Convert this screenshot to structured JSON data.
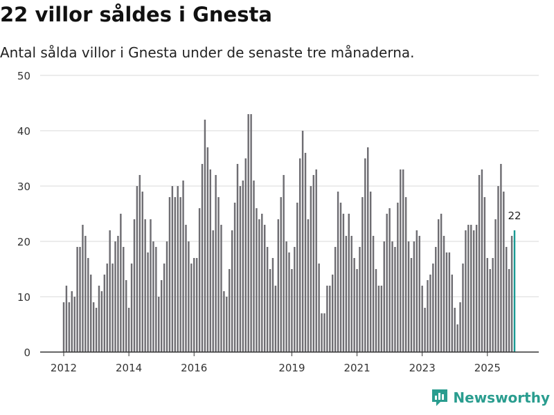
{
  "header": {
    "title": "22 villor såldes i Gnesta",
    "subtitle": "Antal sålda villor i Gnesta under de senaste tre månaderna."
  },
  "brand": {
    "name": "Newsworthy"
  },
  "colors": {
    "bar": "#6e6d72",
    "highlight": "#1a9a93",
    "grid": "#d9d9d9",
    "axis": "#333333",
    "brand": "#2a9d8f"
  },
  "chart_data": {
    "type": "bar",
    "title": "22 villor såldes i Gnesta",
    "subtitle": "Antal sålda villor i Gnesta under de senaste tre månaderna.",
    "xlabel": "",
    "ylabel": "",
    "ylim": [
      0,
      50
    ],
    "yticks": [
      0,
      10,
      20,
      30,
      40,
      50
    ],
    "xrange": [
      2011.6,
      2026.8
    ],
    "xticks": [
      "2012",
      "2014",
      "2016",
      "2019",
      "2021",
      "2023",
      "2025"
    ],
    "xtick_values": [
      2012.0,
      2014.0,
      2016.0,
      2019.0,
      2021.0,
      2023.0,
      2025.0
    ],
    "grid": true,
    "start": "2012-01",
    "frequency": "monthly, rolling three-month total",
    "last_label": "22",
    "values": [
      9,
      12,
      9,
      11,
      10,
      19,
      19,
      23,
      21,
      17,
      14,
      9,
      8,
      12,
      11,
      14,
      16,
      22,
      16,
      20,
      21,
      25,
      19,
      13,
      8,
      16,
      24,
      30,
      32,
      29,
      24,
      18,
      24,
      20,
      19,
      10,
      13,
      16,
      20,
      28,
      30,
      28,
      30,
      28,
      31,
      23,
      20,
      16,
      17,
      17,
      26,
      34,
      42,
      37,
      33,
      22,
      32,
      28,
      23,
      11,
      10,
      15,
      22,
      27,
      34,
      30,
      31,
      35,
      43,
      43,
      31,
      26,
      24,
      25,
      23,
      19,
      15,
      17,
      12,
      24,
      28,
      32,
      20,
      18,
      15,
      19,
      27,
      35,
      40,
      36,
      24,
      30,
      32,
      33,
      16,
      7,
      7,
      12,
      12,
      14,
      19,
      29,
      27,
      25,
      21,
      25,
      21,
      17,
      15,
      19,
      28,
      35,
      37,
      29,
      21,
      15,
      12,
      12,
      20,
      25,
      26,
      20,
      19,
      27,
      33,
      33,
      28,
      20,
      17,
      20,
      22,
      21,
      12,
      8,
      13,
      14,
      16,
      19,
      24,
      25,
      21,
      18,
      18,
      14,
      8,
      5,
      9,
      16,
      22,
      23,
      23,
      22,
      23,
      32,
      33,
      28,
      17,
      15,
      17,
      24,
      30,
      34,
      29,
      19,
      15,
      21,
      22
    ]
  }
}
